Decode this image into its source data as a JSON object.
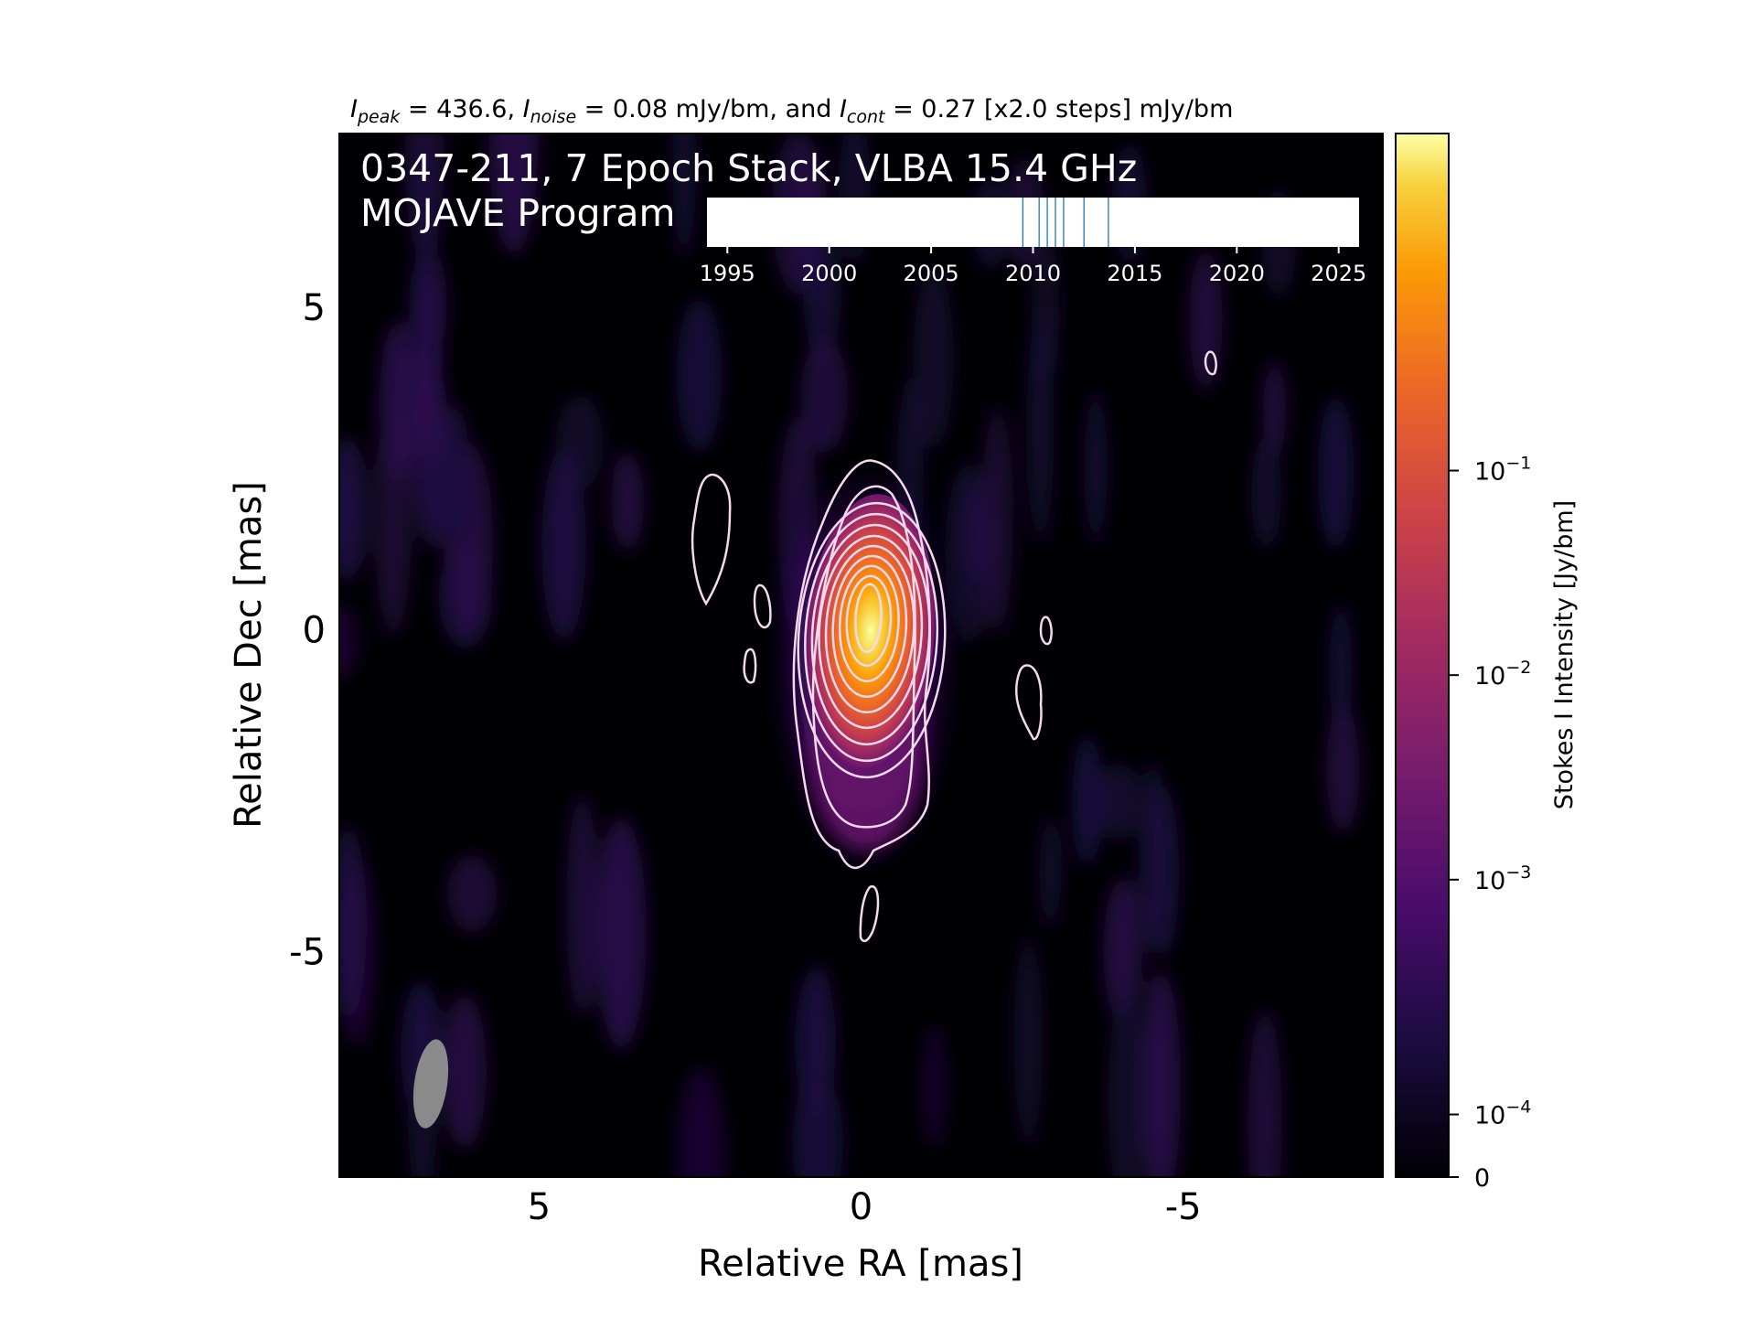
{
  "header": {
    "peak_label": "I",
    "peak_sub": "peak",
    "peak_text": " = 436.6, ",
    "noise_label": "I",
    "noise_sub": "noise",
    "noise_text": " = 0.08 mJy/bm, and ",
    "cont_label": "I",
    "cont_sub": "cont",
    "cont_text": " = 0.27 [x2.0 steps] mJy/bm"
  },
  "chart_data": {
    "type": "heatmap",
    "title_line1": "0347-211, 7 Epoch Stack, VLBA 15.4 GHz",
    "title_line2": "MOJAVE Program",
    "xlabel": "Relative RA [mas]",
    "ylabel": "Relative Dec [mas]",
    "xlim": [
      8.1,
      -8.1
    ],
    "ylim": [
      -8.5,
      7.7
    ],
    "x_ticks": [
      5,
      0,
      -5
    ],
    "x_tick_labels": [
      "5",
      "0",
      "-5"
    ],
    "y_ticks": [
      5,
      0,
      -5
    ],
    "y_tick_labels": [
      "5",
      "0",
      "-5"
    ],
    "colormap": "inferno",
    "colorbar": {
      "label": "Stokes I Intensity [Jy/bm]",
      "scale": "log",
      "ticks": [
        0.1,
        0.01,
        0.001,
        0.0001,
        0
      ],
      "tick_labels": [
        {
          "base": "10",
          "exp": "−1"
        },
        {
          "base": "10",
          "exp": "−2"
        },
        {
          "base": "10",
          "exp": "−3"
        },
        {
          "base": "10",
          "exp": "−4"
        },
        {
          "base": "0",
          "exp": ""
        }
      ]
    },
    "peak_jy": 0.4366,
    "noise_mjy": 0.08,
    "contour_base_mjy": 0.27,
    "contour_step": 2.0,
    "epoch_timeline": {
      "xlim": [
        1994,
        2026
      ],
      "ticks": [
        1995,
        2000,
        2005,
        2010,
        2015,
        2020,
        2025
      ],
      "tick_labels": [
        "1995",
        "2000",
        "2005",
        "2010",
        "2015",
        "2020",
        "2025"
      ],
      "epochs": [
        2009.5,
        2010.3,
        2010.7,
        2011.1,
        2011.5,
        2012.5,
        2013.7
      ]
    },
    "beam_position": "bottom-left",
    "colors": {
      "background": "#000004",
      "contour": "#f2d9ec",
      "epoch_line": "#1f77b4",
      "beam": "#8a8a8a"
    }
  }
}
